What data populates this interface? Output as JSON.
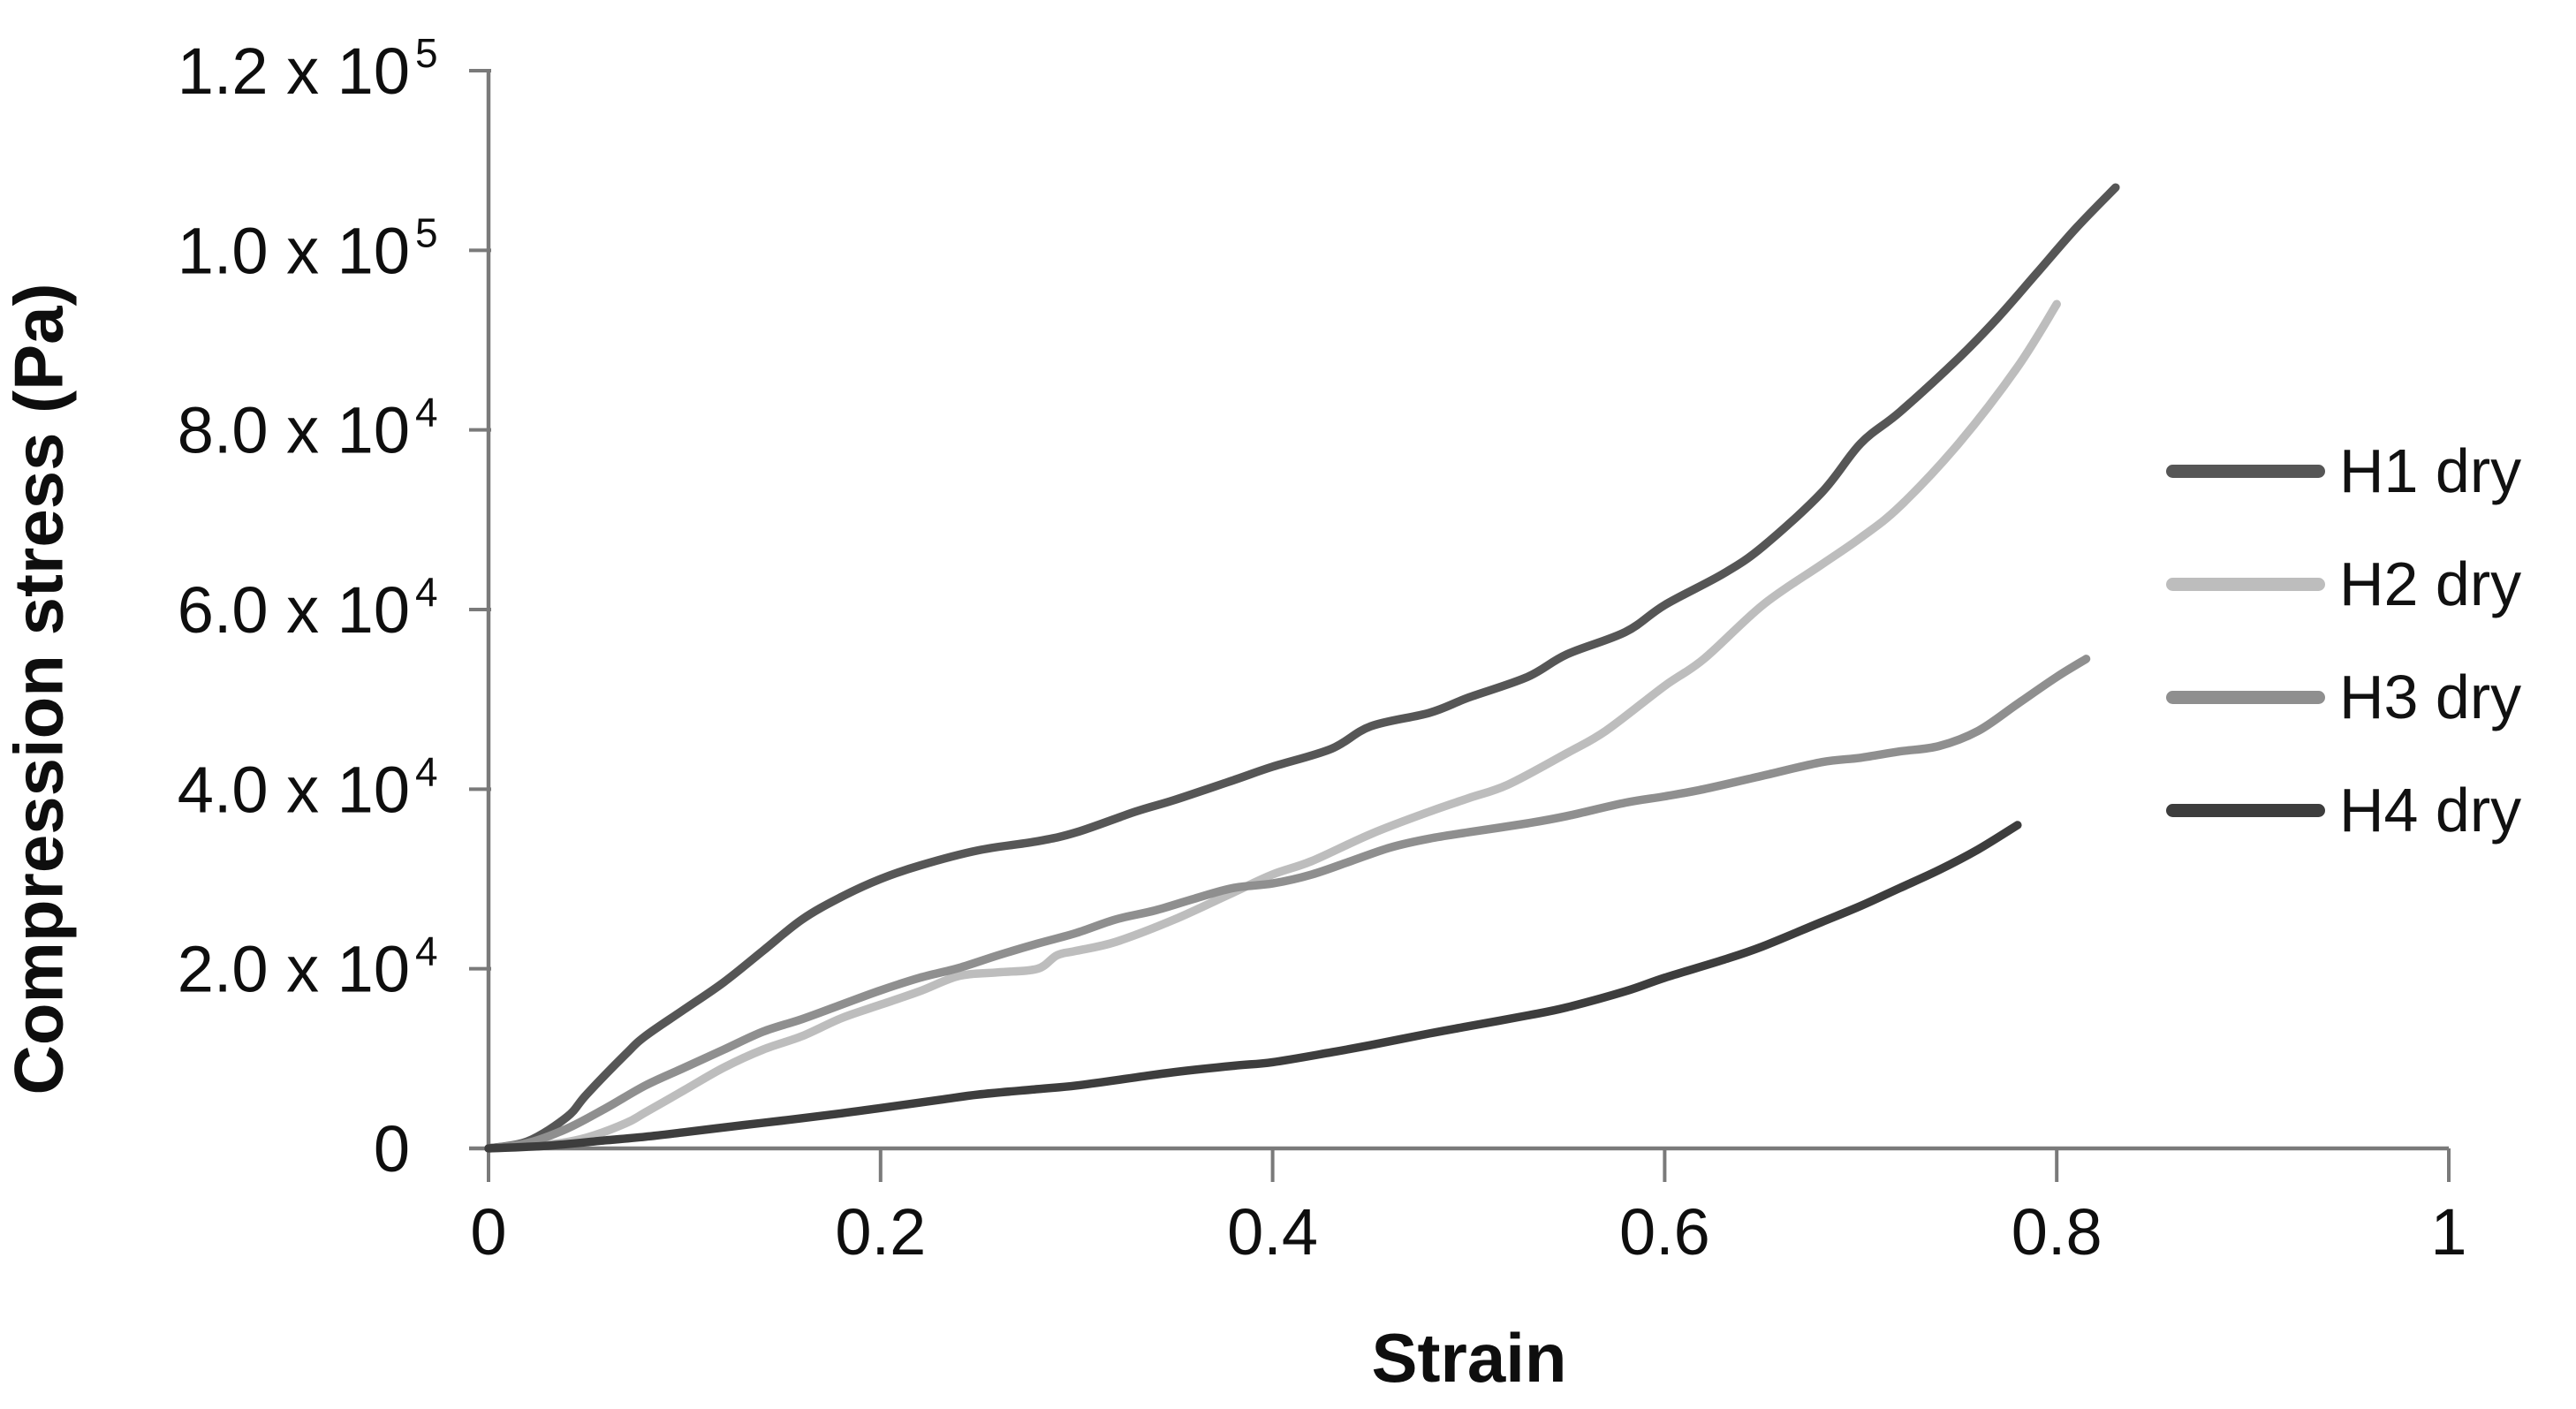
{
  "figure": {
    "xlabel": "Strain",
    "ylabel": "Compression stress (Pa)"
  },
  "chart_data": {
    "type": "line",
    "title": "",
    "xlabel": "Strain",
    "ylabel": "Compression stress (Pa)",
    "xlim": [
      0,
      1
    ],
    "ylim": [
      0,
      120000
    ],
    "grid": false,
    "legend_position": "right",
    "axis_color": "#7a7a7a",
    "text_color": "#0e0e0e",
    "x_ticks": [
      {
        "v": 0,
        "label": "0"
      },
      {
        "v": 0.2,
        "label": "0.2"
      },
      {
        "v": 0.4,
        "label": "0.4"
      },
      {
        "v": 0.6,
        "label": "0.6"
      },
      {
        "v": 0.8,
        "label": "0.8"
      },
      {
        "v": 1,
        "label": "1"
      }
    ],
    "y_ticks": [
      {
        "v": 0,
        "label": "0",
        "exp": ""
      },
      {
        "v": 20000,
        "label": "2.0 x 10",
        "exp": "4"
      },
      {
        "v": 40000,
        "label": "4.0 x 10",
        "exp": "4"
      },
      {
        "v": 60000,
        "label": "6.0 x 10",
        "exp": "4"
      },
      {
        "v": 80000,
        "label": "8.0 x 10",
        "exp": "4"
      },
      {
        "v": 100000,
        "label": "1.0 x 10",
        "exp": "5"
      },
      {
        "v": 120000,
        "label": "1.2 x 10",
        "exp": "5"
      }
    ],
    "series": [
      {
        "name": "H1 dry",
        "color": "#565656",
        "points": [
          [
            0,
            0
          ],
          [
            0.02,
            800
          ],
          [
            0.04,
            3500
          ],
          [
            0.05,
            6000
          ],
          [
            0.07,
            10500
          ],
          [
            0.08,
            12500
          ],
          [
            0.1,
            15500
          ],
          [
            0.12,
            18500
          ],
          [
            0.14,
            22000
          ],
          [
            0.16,
            25500
          ],
          [
            0.18,
            28000
          ],
          [
            0.2,
            30000
          ],
          [
            0.22,
            31500
          ],
          [
            0.25,
            33200
          ],
          [
            0.28,
            34200
          ],
          [
            0.3,
            35200
          ],
          [
            0.33,
            37500
          ],
          [
            0.35,
            38800
          ],
          [
            0.38,
            41000
          ],
          [
            0.4,
            42500
          ],
          [
            0.43,
            44500
          ],
          [
            0.45,
            47000
          ],
          [
            0.48,
            48500
          ],
          [
            0.5,
            50200
          ],
          [
            0.53,
            52500
          ],
          [
            0.55,
            55000
          ],
          [
            0.58,
            57500
          ],
          [
            0.6,
            60500
          ],
          [
            0.63,
            64000
          ],
          [
            0.65,
            67000
          ],
          [
            0.68,
            73000
          ],
          [
            0.7,
            78500
          ],
          [
            0.72,
            82000
          ],
          [
            0.75,
            88000
          ],
          [
            0.77,
            92500
          ],
          [
            0.79,
            97500
          ],
          [
            0.81,
            102500
          ],
          [
            0.83,
            107000
          ]
        ]
      },
      {
        "name": "H2 dry",
        "color": "#bdbdbd",
        "points": [
          [
            0,
            0
          ],
          [
            0.03,
            400
          ],
          [
            0.05,
            1200
          ],
          [
            0.07,
            2800
          ],
          [
            0.08,
            4000
          ],
          [
            0.1,
            6500
          ],
          [
            0.12,
            9000
          ],
          [
            0.14,
            11000
          ],
          [
            0.16,
            12500
          ],
          [
            0.18,
            14500
          ],
          [
            0.2,
            16000
          ],
          [
            0.22,
            17500
          ],
          [
            0.24,
            19200
          ],
          [
            0.26,
            19600
          ],
          [
            0.28,
            20000
          ],
          [
            0.29,
            21500
          ],
          [
            0.3,
            22000
          ],
          [
            0.32,
            23000
          ],
          [
            0.35,
            25500
          ],
          [
            0.38,
            28500
          ],
          [
            0.4,
            30500
          ],
          [
            0.42,
            32000
          ],
          [
            0.45,
            35000
          ],
          [
            0.48,
            37500
          ],
          [
            0.5,
            39000
          ],
          [
            0.52,
            40500
          ],
          [
            0.55,
            44000
          ],
          [
            0.57,
            46500
          ],
          [
            0.6,
            51500
          ],
          [
            0.62,
            54500
          ],
          [
            0.65,
            60500
          ],
          [
            0.68,
            65000
          ],
          [
            0.7,
            68000
          ],
          [
            0.72,
            71500
          ],
          [
            0.75,
            78500
          ],
          [
            0.78,
            87000
          ],
          [
            0.8,
            94000
          ]
        ]
      },
      {
        "name": "H3 dry",
        "color": "#8f8f8f",
        "points": [
          [
            0,
            0
          ],
          [
            0.02,
            600
          ],
          [
            0.04,
            2200
          ],
          [
            0.06,
            4500
          ],
          [
            0.08,
            7000
          ],
          [
            0.1,
            9000
          ],
          [
            0.12,
            11000
          ],
          [
            0.14,
            13000
          ],
          [
            0.16,
            14400
          ],
          [
            0.18,
            16000
          ],
          [
            0.2,
            17600
          ],
          [
            0.22,
            19000
          ],
          [
            0.24,
            20100
          ],
          [
            0.26,
            21500
          ],
          [
            0.28,
            22800
          ],
          [
            0.3,
            24000
          ],
          [
            0.32,
            25500
          ],
          [
            0.34,
            26500
          ],
          [
            0.36,
            27800
          ],
          [
            0.38,
            29000
          ],
          [
            0.4,
            29500
          ],
          [
            0.42,
            30500
          ],
          [
            0.44,
            32000
          ],
          [
            0.46,
            33500
          ],
          [
            0.48,
            34500
          ],
          [
            0.5,
            35200
          ],
          [
            0.53,
            36200
          ],
          [
            0.55,
            37000
          ],
          [
            0.58,
            38500
          ],
          [
            0.6,
            39200
          ],
          [
            0.62,
            40000
          ],
          [
            0.65,
            41500
          ],
          [
            0.68,
            43000
          ],
          [
            0.7,
            43500
          ],
          [
            0.72,
            44200
          ],
          [
            0.74,
            44800
          ],
          [
            0.76,
            46500
          ],
          [
            0.78,
            49500
          ],
          [
            0.8,
            52500
          ],
          [
            0.815,
            54500
          ]
        ]
      },
      {
        "name": "H4 dry",
        "color": "#3d3d3d",
        "points": [
          [
            0,
            0
          ],
          [
            0.03,
            300
          ],
          [
            0.06,
            900
          ],
          [
            0.08,
            1300
          ],
          [
            0.1,
            1800
          ],
          [
            0.13,
            2600
          ],
          [
            0.15,
            3100
          ],
          [
            0.18,
            3900
          ],
          [
            0.2,
            4500
          ],
          [
            0.23,
            5400
          ],
          [
            0.25,
            6000
          ],
          [
            0.28,
            6600
          ],
          [
            0.3,
            7000
          ],
          [
            0.33,
            7900
          ],
          [
            0.35,
            8500
          ],
          [
            0.38,
            9200
          ],
          [
            0.4,
            9600
          ],
          [
            0.43,
            10700
          ],
          [
            0.45,
            11500
          ],
          [
            0.48,
            12800
          ],
          [
            0.5,
            13600
          ],
          [
            0.53,
            14800
          ],
          [
            0.55,
            15700
          ],
          [
            0.58,
            17500
          ],
          [
            0.6,
            19000
          ],
          [
            0.63,
            21000
          ],
          [
            0.65,
            22500
          ],
          [
            0.68,
            25200
          ],
          [
            0.7,
            27000
          ],
          [
            0.72,
            29000
          ],
          [
            0.74,
            31000
          ],
          [
            0.76,
            33300
          ],
          [
            0.78,
            36000
          ]
        ]
      }
    ]
  }
}
